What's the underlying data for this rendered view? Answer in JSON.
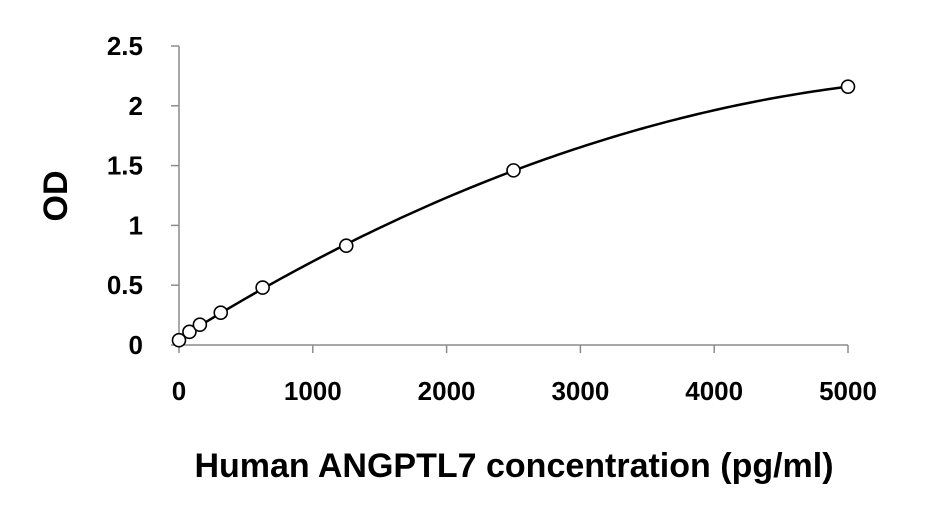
{
  "chart_data": {
    "type": "scatter",
    "xlabel": "Human ANGPTL7 concentration (pg/ml)",
    "ylabel": "OD",
    "xlim": [
      0,
      5000
    ],
    "ylim": [
      0,
      2.5
    ],
    "x_ticks": [
      "0",
      "1000",
      "2000",
      "3000",
      "4000",
      "5000"
    ],
    "y_ticks": [
      "0",
      "0.5",
      "1",
      "1.5",
      "2",
      "2.5"
    ],
    "grid": false,
    "legend": "none",
    "series": [
      {
        "marker": "open-circle",
        "fit_line": true,
        "x": [
          0,
          78,
          156,
          312,
          625,
          1250,
          2500,
          5000
        ],
        "y": [
          0.04,
          0.11,
          0.17,
          0.27,
          0.48,
          0.83,
          1.46,
          2.16
        ]
      }
    ]
  }
}
